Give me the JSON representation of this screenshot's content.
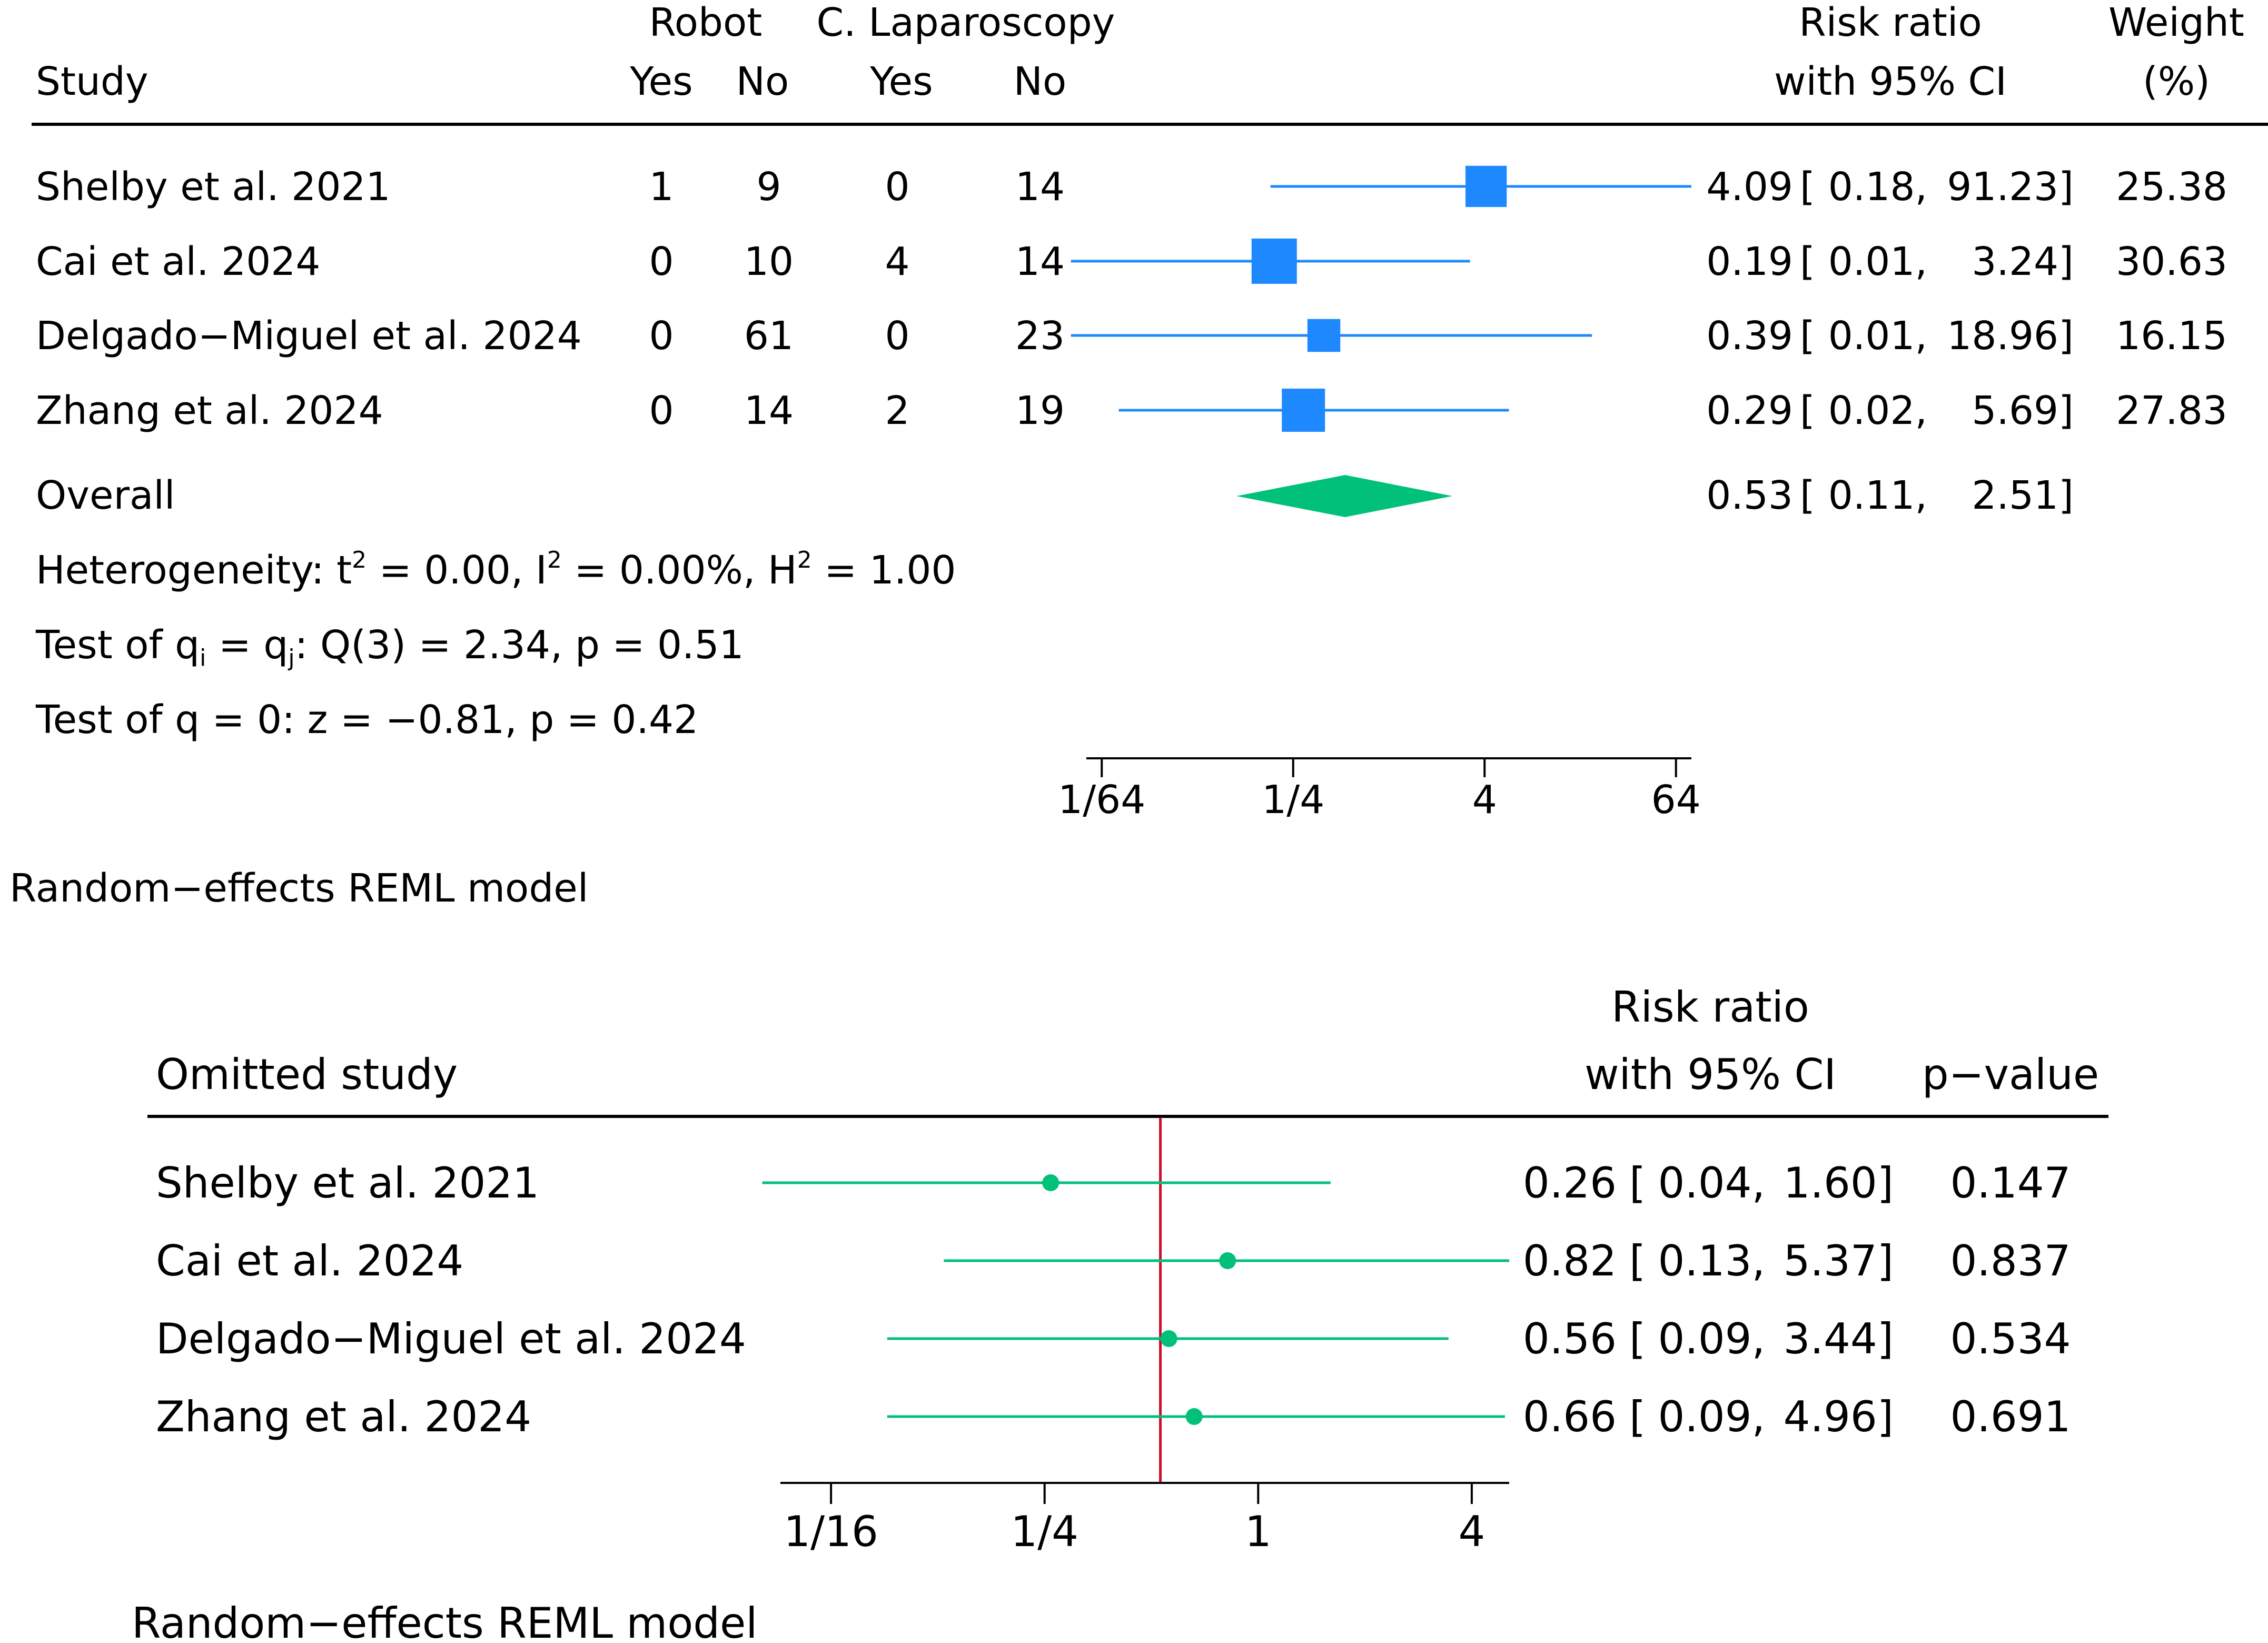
{
  "chart_data": [
    {
      "type": "forest",
      "columns": {
        "study": "Study",
        "group1": "Robot",
        "group2": "C. Laparoscopy",
        "yes": "Yes",
        "no": "No",
        "effect_line1": "Risk ratio",
        "effect_line2": "with 95% CI",
        "weight_line1": "Weight",
        "weight_line2": "(%)"
      },
      "x_scale": "log2",
      "xlim": [
        0.0125,
        80
      ],
      "ticks": [
        0.015625,
        0.25,
        4,
        64
      ],
      "tick_labels": [
        "1/64",
        "1/4",
        "4",
        "64"
      ],
      "studies": [
        {
          "name": "Shelby et al. 2021",
          "robot_yes": "1",
          "robot_no": "9",
          "lap_yes": "0",
          "lap_no": "14",
          "rr": 4.09,
          "lo": 0.18,
          "hi": 91.23,
          "rr_text": "4.09",
          "lo_text": "0.18,",
          "hi_text": "91.23]",
          "weight": 25.38,
          "weight_text": "25.38"
        },
        {
          "name": "Cai et al. 2024",
          "robot_yes": "0",
          "robot_no": "10",
          "lap_yes": "4",
          "lap_no": "14",
          "rr": 0.19,
          "lo": 0.01,
          "hi": 3.24,
          "rr_text": "0.19",
          "lo_text": "0.01,",
          "hi_text": "3.24]",
          "weight": 30.63,
          "weight_text": "30.63"
        },
        {
          "name": "Delgado−Miguel et al. 2024",
          "robot_yes": "0",
          "robot_no": "61",
          "lap_yes": "0",
          "lap_no": "23",
          "rr": 0.39,
          "lo": 0.01,
          "hi": 18.96,
          "rr_text": "0.39",
          "lo_text": "0.01,",
          "hi_text": "18.96]",
          "weight": 16.15,
          "weight_text": "16.15"
        },
        {
          "name": "Zhang et al. 2024",
          "robot_yes": "0",
          "robot_no": "14",
          "lap_yes": "2",
          "lap_no": "19",
          "rr": 0.29,
          "lo": 0.02,
          "hi": 5.69,
          "rr_text": "0.29",
          "lo_text": "0.02,",
          "hi_text": "5.69]",
          "weight": 27.83,
          "weight_text": "27.83"
        }
      ],
      "overall": {
        "label": "Overall",
        "rr": 0.53,
        "lo": 0.11,
        "hi": 2.51,
        "rr_text": "0.53",
        "lo_text": "0.11,",
        "hi_text": "2.51]"
      },
      "heterogeneity": {
        "label": "Heterogeneity: ",
        "tau2": "t",
        "tau2_value": " = 0.00, ",
        "i2": "I",
        "i2_value": " = 0.00%, ",
        "h2": "H",
        "h2_value": " = 1.00",
        "sup": "2"
      },
      "test_equal": {
        "prefix": "Test of q",
        "sub_i": "i",
        "eq": " = q",
        "sub_j": "j",
        "rest": ": Q(3) = 2.34, p = 0.51"
      },
      "test_zero": "Test of q = 0: z = −0.81, p = 0.42",
      "model_note": "Random−effects REML model",
      "colors": {
        "marker": "#1e88ff",
        "ci": "#1e88ff",
        "overall": "#00c07a"
      }
    },
    {
      "type": "leave-one-out",
      "columns": {
        "study": "Omitted study",
        "effect_line1": "Risk ratio",
        "effect_line2": "with 95% CI",
        "pvalue": "p−value"
      },
      "x_scale": "log2",
      "xlim": [
        0.045,
        5.1
      ],
      "ticks": [
        0.0625,
        0.25,
        1,
        4
      ],
      "tick_labels": [
        "1/16",
        "1/4",
        "1",
        "4"
      ],
      "reference_line": 0.53,
      "studies": [
        {
          "name": "Shelby et al. 2021",
          "rr": 0.26,
          "lo": 0.04,
          "hi": 1.6,
          "rr_text": "0.26",
          "lo_text": "0.04,",
          "hi_text": "1.60]",
          "p": 0.147,
          "p_text": "0.147"
        },
        {
          "name": "Cai et al. 2024",
          "rr": 0.82,
          "lo": 0.13,
          "hi": 5.37,
          "rr_text": "0.82",
          "lo_text": "0.13,",
          "hi_text": "5.37]",
          "p": 0.837,
          "p_text": "0.837"
        },
        {
          "name": "Delgado−Miguel et al. 2024",
          "rr": 0.56,
          "lo": 0.09,
          "hi": 3.44,
          "rr_text": "0.56",
          "lo_text": "0.09,",
          "hi_text": "3.44]",
          "p": 0.534,
          "p_text": "0.534"
        },
        {
          "name": "Zhang et al. 2024",
          "rr": 0.66,
          "lo": 0.09,
          "hi": 4.96,
          "rr_text": "0.66",
          "lo_text": "0.09,",
          "hi_text": "4.96]",
          "p": 0.691,
          "p_text": "0.691"
        }
      ],
      "model_note": "Random−effects REML model",
      "colors": {
        "marker": "#00c07a",
        "ci": "#00c07a",
        "reference": "#c8102e"
      }
    }
  ]
}
